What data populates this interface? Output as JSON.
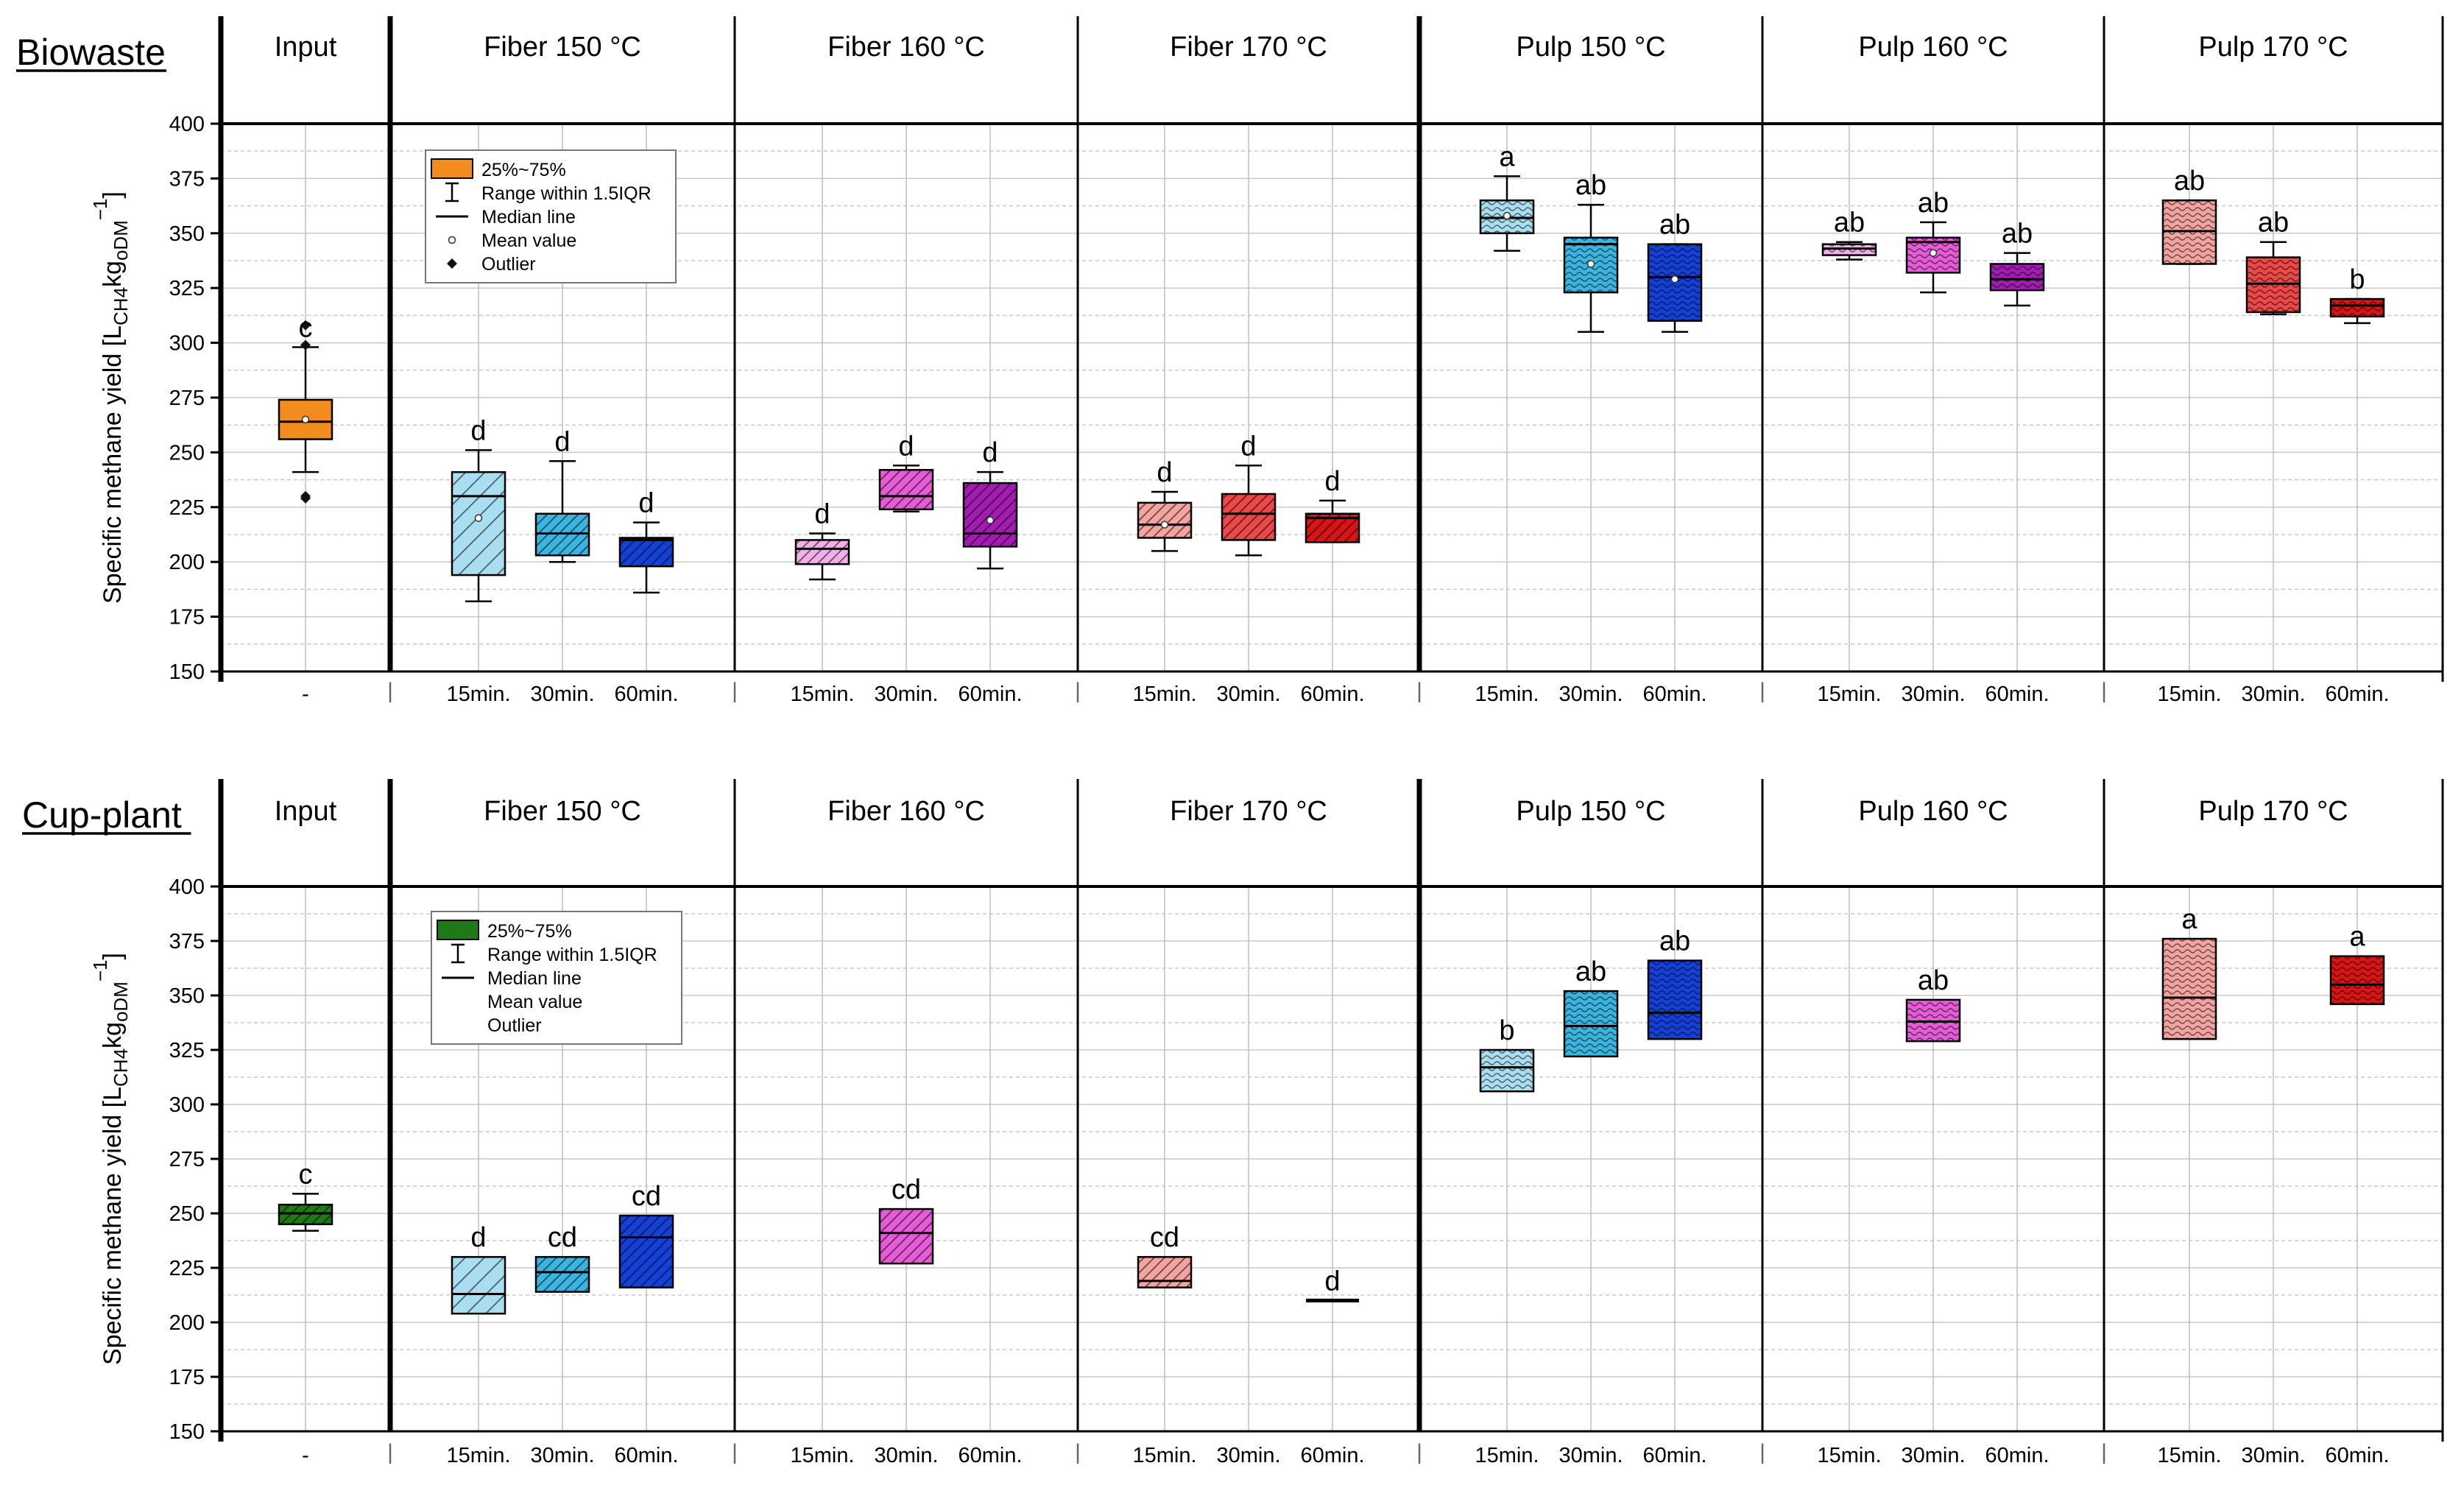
{
  "chart_data": [
    {
      "type": "box",
      "title": "Biowaste",
      "ylabel": "Specific methane yield [L",
      "ylabel_sub": "CH4",
      "ylabel_mid": "kg",
      "ylabel_sub2": "oDM",
      "ylabel_sup": "−1",
      "ylabel_end": "]",
      "ylim": [
        150,
        400
      ],
      "yticks": [
        150,
        175,
        200,
        225,
        250,
        275,
        300,
        325,
        350,
        375,
        400
      ],
      "legend": {
        "color": "#F28C1E",
        "items": [
          "25%~75%",
          "Range within 1.5IQR",
          "Median line",
          "Mean value",
          "Outlier"
        ]
      },
      "groups": [
        {
          "label": "Input",
          "x_labels": [
            "-"
          ],
          "boxes": [
            {
              "q1": 256,
              "median": 264,
              "q3": 274,
              "wlo": 241,
              "whi": 298,
              "mean": 265,
              "outliers": [
                230,
                229,
                299,
                308
              ],
              "letter": "c",
              "color": "#F28C1E",
              "pattern": "none"
            }
          ]
        },
        {
          "label": "Fiber 150 °C",
          "x_labels": [
            "15min.",
            "30min.",
            "60min."
          ],
          "boxes": [
            {
              "q1": 194,
              "median": 230,
              "q3": 241,
              "wlo": 182,
              "whi": 251,
              "mean": 220,
              "outliers": [],
              "letter": "d",
              "color": "#A9DDF0",
              "pattern": "diagwide"
            },
            {
              "q1": 203,
              "median": 213,
              "q3": 222,
              "wlo": 200,
              "whi": 246,
              "mean": null,
              "outliers": [],
              "letter": "d",
              "color": "#3BB5E0",
              "pattern": "diag"
            },
            {
              "q1": 198,
              "median": 210,
              "q3": 211,
              "wlo": 186,
              "whi": 218,
              "mean": null,
              "outliers": [],
              "letter": "d",
              "color": "#1540D8",
              "pattern": "diag"
            }
          ]
        },
        {
          "label": "Fiber 160 °C",
          "x_labels": [
            "15min.",
            "30min.",
            "60min."
          ],
          "boxes": [
            {
              "q1": 199,
              "median": 206,
              "q3": 210,
              "wlo": 192,
              "whi": 213,
              "mean": null,
              "outliers": [],
              "letter": "d",
              "color": "#F2AEE8",
              "pattern": "diag"
            },
            {
              "q1": 224,
              "median": 230,
              "q3": 242,
              "wlo": 223,
              "whi": 244,
              "mean": null,
              "outliers": [],
              "letter": "d",
              "color": "#E55CD6",
              "pattern": "diag"
            },
            {
              "q1": 207,
              "median": 213,
              "q3": 236,
              "wlo": 197,
              "whi": 241,
              "mean": 219,
              "outliers": [],
              "letter": "d",
              "color": "#A21CB2",
              "pattern": "diag"
            }
          ]
        },
        {
          "label": "Fiber 170 °C",
          "x_labels": [
            "15min.",
            "30min.",
            "60min."
          ],
          "boxes": [
            {
              "q1": 211,
              "median": 217,
              "q3": 227,
              "wlo": 205,
              "whi": 232,
              "mean": 217,
              "outliers": [],
              "letter": "d",
              "color": "#F4A4A0",
              "pattern": "diag"
            },
            {
              "q1": 210,
              "median": 222,
              "q3": 231,
              "wlo": 203,
              "whi": 244,
              "mean": null,
              "outliers": [],
              "letter": "d",
              "color": "#EC4848",
              "pattern": "diag"
            },
            {
              "q1": 209,
              "median": 220,
              "q3": 222,
              "wlo": 209,
              "whi": 228,
              "mean": null,
              "outliers": [],
              "letter": "d",
              "color": "#D81414",
              "pattern": "diag"
            }
          ]
        },
        {
          "label": "Pulp 150 °C",
          "x_labels": [
            "15min.",
            "30min.",
            "60min."
          ],
          "boxes": [
            {
              "q1": 350,
              "median": 357,
              "q3": 365,
              "wlo": 342,
              "whi": 376,
              "mean": 358,
              "outliers": [],
              "letter": "a",
              "color": "#A9DDF0",
              "pattern": "wave"
            },
            {
              "q1": 323,
              "median": 345,
              "q3": 348,
              "wlo": 305,
              "whi": 363,
              "mean": 336,
              "outliers": [],
              "letter": "ab",
              "color": "#3BB5E0",
              "pattern": "wave"
            },
            {
              "q1": 310,
              "median": 330,
              "q3": 345,
              "wlo": 305,
              "whi": 345,
              "mean": 329,
              "outliers": [],
              "letter": "ab",
              "color": "#1540D8",
              "pattern": "wave"
            }
          ]
        },
        {
          "label": "Pulp 160 °C",
          "x_labels": [
            "15min.",
            "30min.",
            "60min."
          ],
          "boxes": [
            {
              "q1": 340,
              "median": 343,
              "q3": 345,
              "wlo": 338,
              "whi": 346,
              "mean": null,
              "outliers": [],
              "letter": "ab",
              "color": "#F2AEE8",
              "pattern": "wave"
            },
            {
              "q1": 332,
              "median": 346,
              "q3": 348,
              "wlo": 323,
              "whi": 355,
              "mean": 341,
              "outliers": [],
              "letter": "ab",
              "color": "#E55CD6",
              "pattern": "wave"
            },
            {
              "q1": 324,
              "median": 329,
              "q3": 336,
              "wlo": 317,
              "whi": 341,
              "mean": null,
              "outliers": [],
              "letter": "ab",
              "color": "#A21CB2",
              "pattern": "wave"
            }
          ]
        },
        {
          "label": "Pulp 170 °C",
          "x_labels": [
            "15min.",
            "30min.",
            "60min."
          ],
          "boxes": [
            {
              "q1": 336,
              "median": 351,
              "q3": 365,
              "wlo": 336,
              "whi": 365,
              "mean": null,
              "outliers": [],
              "letter": "ab",
              "color": "#F4A4A0",
              "pattern": "wave"
            },
            {
              "q1": 314,
              "median": 327,
              "q3": 339,
              "wlo": 313,
              "whi": 346,
              "mean": null,
              "outliers": [],
              "letter": "ab",
              "color": "#EC4848",
              "pattern": "wave"
            },
            {
              "q1": 312,
              "median": 317,
              "q3": 320,
              "wlo": 309,
              "whi": 320,
              "mean": null,
              "outliers": [],
              "letter": "b",
              "color": "#D81414",
              "pattern": "wave"
            }
          ]
        }
      ]
    },
    {
      "type": "box",
      "title": "Cup-plant",
      "ylabel": "Specific methane yield [L",
      "ylabel_sub": "CH4",
      "ylabel_mid": "kg",
      "ylabel_sub2": "oDM",
      "ylabel_sup": "−1",
      "ylabel_end": "]",
      "ylim": [
        150,
        400
      ],
      "yticks": [
        150,
        175,
        200,
        225,
        250,
        275,
        300,
        325,
        350,
        375,
        400
      ],
      "legend": {
        "color": "#1E7A14",
        "items": [
          "25%~75%",
          "Range within 1.5IQR",
          "Median line",
          "Mean value",
          "Outlier"
        ]
      },
      "groups": [
        {
          "label": "Input",
          "x_labels": [
            "-"
          ],
          "boxes": [
            {
              "q1": 245,
              "median": 250,
              "q3": 254,
              "wlo": 242,
              "whi": 259,
              "mean": null,
              "outliers": [],
              "letter": "c",
              "color": "#1E7A14",
              "pattern": "diag"
            }
          ]
        },
        {
          "label": "Fiber 150 °C",
          "x_labels": [
            "15min.",
            "30min.",
            "60min."
          ],
          "boxes": [
            {
              "q1": 204,
              "median": 213,
              "q3": 230,
              "wlo": null,
              "whi": null,
              "mean": null,
              "outliers": [],
              "letter": "d",
              "color": "#A9DDF0",
              "pattern": "diagwide"
            },
            {
              "q1": 214,
              "median": 223,
              "q3": 230,
              "wlo": null,
              "whi": null,
              "mean": null,
              "outliers": [],
              "letter": "cd",
              "color": "#3BB5E0",
              "pattern": "diag"
            },
            {
              "q1": 216,
              "median": 239,
              "q3": 249,
              "wlo": null,
              "whi": null,
              "mean": null,
              "outliers": [],
              "letter": "cd",
              "color": "#1540D8",
              "pattern": "diag"
            }
          ]
        },
        {
          "label": "Fiber 160 °C",
          "x_labels": [
            "15min.",
            "30min.",
            "60min."
          ],
          "boxes": [
            null,
            {
              "q1": 227,
              "median": 241,
              "q3": 252,
              "wlo": null,
              "whi": null,
              "mean": null,
              "outliers": [],
              "letter": "cd",
              "color": "#E55CD6",
              "pattern": "diag"
            },
            null
          ]
        },
        {
          "label": "Fiber 170 °C",
          "x_labels": [
            "15min.",
            "30min.",
            "60min."
          ],
          "boxes": [
            {
              "q1": 216,
              "median": 219,
              "q3": 230,
              "wlo": null,
              "whi": null,
              "mean": null,
              "outliers": [],
              "letter": "cd",
              "color": "#F4A4A0",
              "pattern": "diag"
            },
            null,
            {
              "q1": 210,
              "median": 210,
              "q3": 210,
              "wlo": null,
              "whi": null,
              "mean": null,
              "outliers": [],
              "letter": "d",
              "color": "#D81414",
              "pattern": "none"
            }
          ]
        },
        {
          "label": "Pulp 150 °C",
          "x_labels": [
            "15min.",
            "30min.",
            "60min."
          ],
          "boxes": [
            {
              "q1": 306,
              "median": 317,
              "q3": 325,
              "wlo": null,
              "whi": null,
              "mean": null,
              "outliers": [],
              "letter": "b",
              "color": "#A9DDF0",
              "pattern": "wave"
            },
            {
              "q1": 322,
              "median": 336,
              "q3": 352,
              "wlo": null,
              "whi": null,
              "mean": null,
              "outliers": [],
              "letter": "ab",
              "color": "#3BB5E0",
              "pattern": "wave"
            },
            {
              "q1": 330,
              "median": 342,
              "q3": 366,
              "wlo": null,
              "whi": null,
              "mean": null,
              "outliers": [],
              "letter": "ab",
              "color": "#1540D8",
              "pattern": "wave"
            }
          ]
        },
        {
          "label": "Pulp 160 °C",
          "x_labels": [
            "15min.",
            "30min.",
            "60min."
          ],
          "boxes": [
            null,
            {
              "q1": 329,
              "median": 338,
              "q3": 348,
              "wlo": null,
              "whi": null,
              "mean": null,
              "outliers": [],
              "letter": "ab",
              "color": "#E55CD6",
              "pattern": "wave"
            },
            null
          ]
        },
        {
          "label": "Pulp 170 °C",
          "x_labels": [
            "15min.",
            "30min.",
            "60min."
          ],
          "boxes": [
            {
              "q1": 330,
              "median": 349,
              "q3": 376,
              "wlo": null,
              "whi": null,
              "mean": null,
              "outliers": [],
              "letter": "a",
              "color": "#F4A4A0",
              "pattern": "wave"
            },
            null,
            {
              "q1": 346,
              "median": 355,
              "q3": 368,
              "wlo": null,
              "whi": null,
              "mean": null,
              "outliers": [],
              "letter": "a",
              "color": "#D81414",
              "pattern": "wave"
            }
          ]
        }
      ]
    }
  ]
}
